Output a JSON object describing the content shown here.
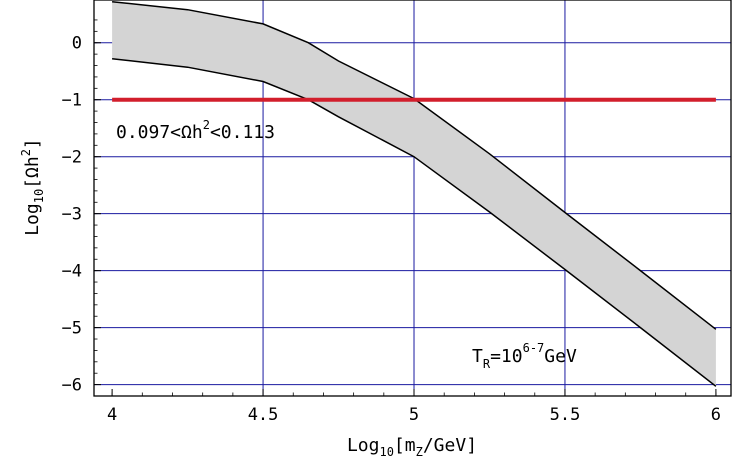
{
  "chart_data": {
    "type": "area",
    "xlabel": {
      "prefix": "Log",
      "prefix_sub": "10",
      "body_open": "[m",
      "body_sub": "Z",
      "body_close": "/GeV]"
    },
    "ylabel": {
      "prefix": "Log",
      "prefix_sub": "10",
      "body_open": "[Ωh",
      "body_sup": "2",
      "body_close": "]"
    },
    "xlim": [
      3.94,
      6.05
    ],
    "ylim": [
      -6.2,
      0.75
    ],
    "x_ticks": [
      {
        "value": 4,
        "label": "4"
      },
      {
        "value": 4.5,
        "label": "4.5"
      },
      {
        "value": 5,
        "label": "5"
      },
      {
        "value": 5.5,
        "label": "5.5"
      },
      {
        "value": 6,
        "label": "6"
      }
    ],
    "y_ticks": [
      {
        "value": 0,
        "label": "0"
      },
      {
        "value": -1,
        "label": "−1"
      },
      {
        "value": -2,
        "label": "−2"
      },
      {
        "value": -3,
        "label": "−3"
      },
      {
        "value": -4,
        "label": "−4"
      },
      {
        "value": -5,
        "label": "−5"
      },
      {
        "value": -6,
        "label": "−6"
      }
    ],
    "x_gridlines": [
      4.5,
      5,
      5.5
    ],
    "y_gridlines": [
      0,
      -1,
      -2,
      -3,
      -4,
      -5,
      -6
    ],
    "grid_color": "#1a1aa0",
    "band_fill": "#d4d4d4",
    "band": {
      "x": [
        4.0,
        4.25,
        4.5,
        4.65,
        4.75,
        5.0,
        5.25,
        5.5,
        5.75,
        6.0
      ],
      "upper": [
        0.72,
        0.58,
        0.33,
        0.0,
        -0.32,
        -0.98,
        -1.95,
        -2.98,
        -4.0,
        -5.03
      ],
      "lower": [
        -0.28,
        -0.43,
        -0.68,
        -1.0,
        -1.3,
        -2.0,
        -2.97,
        -3.98,
        -5.0,
        -6.03
      ]
    },
    "horizontal_line": {
      "y": -1,
      "color": "#d21e2c",
      "label_main": "0.097<Ωh",
      "label_sup": "2",
      "label_tail": "<0.113"
    },
    "annotation": {
      "main": "T",
      "sub": "R",
      "mid": "=10",
      "sup": "6-7",
      "tail": "GeV"
    }
  }
}
